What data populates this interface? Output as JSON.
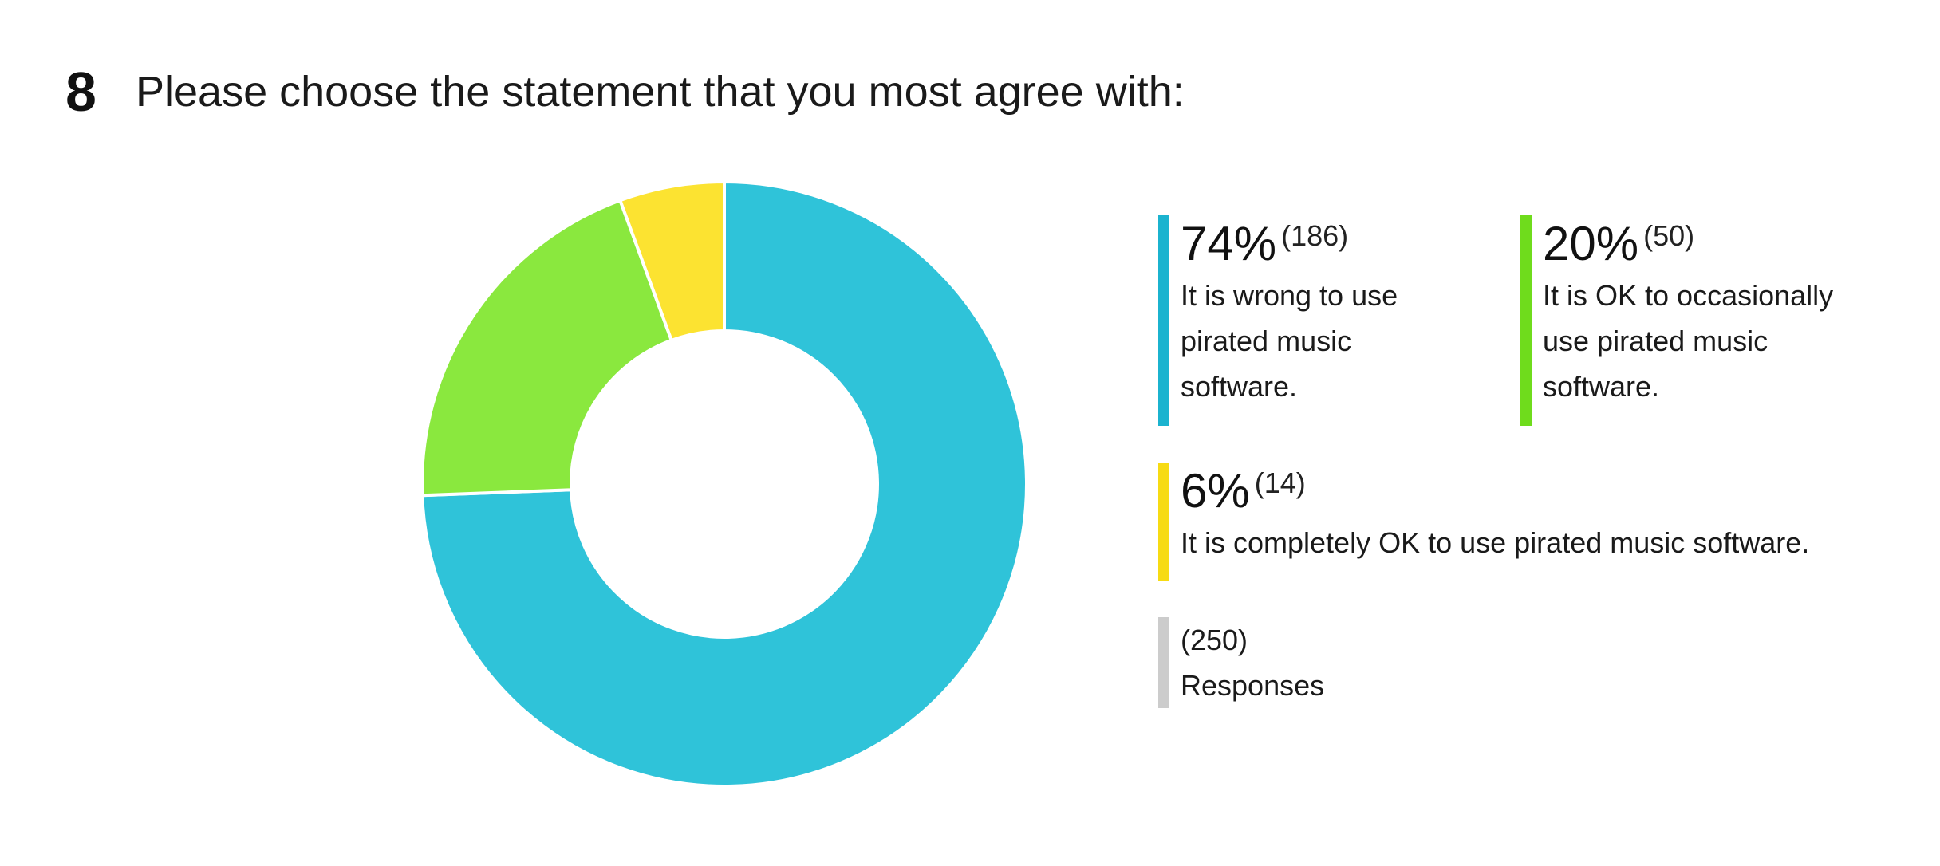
{
  "question": {
    "number": "8",
    "text": "Please choose the statement that you most agree with:"
  },
  "chart_data": {
    "type": "pie",
    "variant": "donut",
    "title": "Please choose the statement that you most agree with:",
    "total_label": "(250)",
    "total_caption": "Responses",
    "total_responses": 250,
    "slices": [
      {
        "label": "It is wrong to use pirated music software.",
        "percent_label": "74%",
        "count_label": "(186)",
        "value": 186,
        "color": "#2FC3D9",
        "legend_color": "#1BB3CF"
      },
      {
        "label": "It is OK to occasionally use pirated music software.",
        "percent_label": "20%",
        "count_label": "(50)",
        "value": 50,
        "color": "#8AE83E",
        "legend_color": "#6FDC1C"
      },
      {
        "label": "It is completely OK to use pirated music software.",
        "percent_label": "6%",
        "count_label": "(14)",
        "value": 14,
        "color": "#FCE331",
        "legend_color": "#F7DB13"
      }
    ],
    "total_bar_color": "#CCCCCC"
  }
}
